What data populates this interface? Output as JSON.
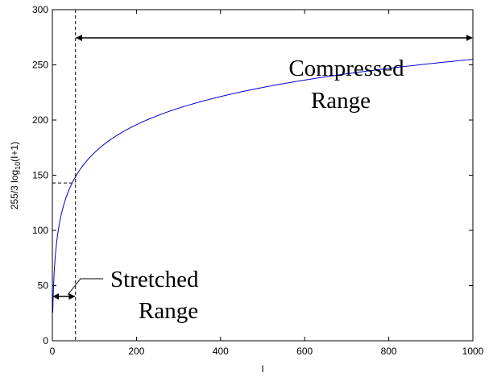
{
  "chart_data": {
    "type": "line",
    "xlabel": "I",
    "ylabel": {
      "prefix": "255/3 log",
      "sub": "10",
      "suffix": "(I+1)"
    },
    "xlim": [
      0,
      1000
    ],
    "ylim": [
      0,
      300
    ],
    "xticks": [
      "0",
      "200",
      "400",
      "600",
      "800",
      "1000"
    ],
    "yticks": [
      "0",
      "50",
      "100",
      "150",
      "200",
      "250",
      "300"
    ],
    "grid": false,
    "series": [
      {
        "formula": "255/3*log10(I+1)",
        "color": "#0000cc",
        "x": [
          0,
          1,
          2,
          3,
          5,
          8,
          10,
          15,
          20,
          30,
          40,
          50,
          55,
          70,
          100,
          150,
          200,
          300,
          400,
          500,
          600,
          700,
          800,
          900,
          1000
        ],
        "y": [
          0,
          25.6,
          40.6,
          51.2,
          66.1,
          81.1,
          88.5,
          102.4,
          112.4,
          126.8,
          137.1,
          145.1,
          148.4,
          157.4,
          170.4,
          185.3,
          195.9,
          210.8,
          221.4,
          229.6,
          236.4,
          242.1,
          247.0,
          251.3,
          255.0
        ]
      }
    ],
    "threshold": {
      "x": 55,
      "y": 143
    },
    "annotations": {
      "compressed": [
        "Compressed",
        "Range"
      ],
      "stretched": [
        "Stretched",
        "Range"
      ]
    }
  }
}
